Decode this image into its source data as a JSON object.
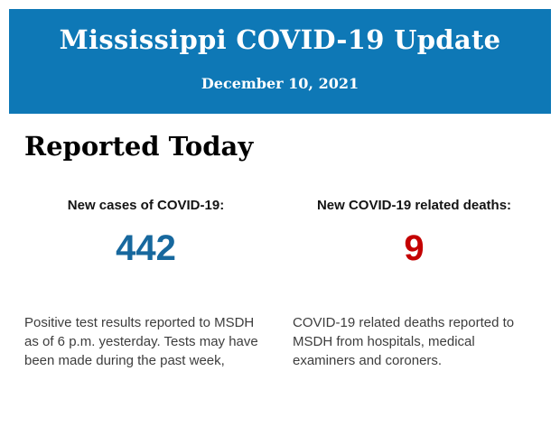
{
  "header": {
    "title": "Mississippi COVID-19 Update",
    "date": "December 10, 2021",
    "background_color": "#0e78b6",
    "text_color": "#ffffff"
  },
  "section": {
    "heading": "Reported Today"
  },
  "stats": [
    {
      "label": "New cases of COVID-19:",
      "value": "442",
      "value_color": "#17689e",
      "description": "Positive test results reported to MSDH as of 6 p.m. yesterday. Tests may have been made during the past week,"
    },
    {
      "label": "New COVID-19 related deaths:",
      "value": "9",
      "value_color": "#c40000",
      "description": "COVID-19 related deaths reported to MSDH from hospitals, medical examiners and coroners."
    }
  ]
}
